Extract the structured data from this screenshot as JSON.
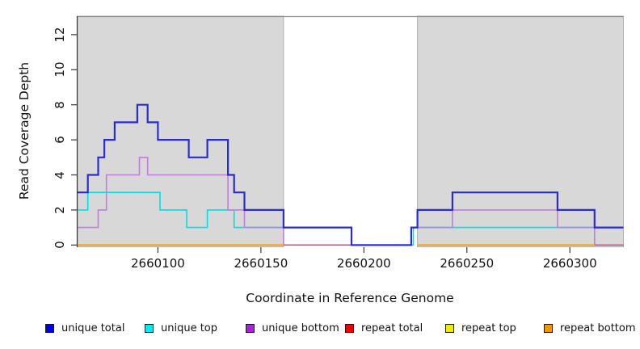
{
  "figure": {
    "xlabel": "Coordinate in Reference Genome",
    "ylabel": "Read Coverage Depth"
  },
  "chart_data": {
    "type": "line",
    "subtype": "step-coverage-plot",
    "title": "",
    "xlabel": "Coordinate in Reference Genome",
    "ylabel": "Read Coverage Depth",
    "xlim": [
      2660061,
      2660326
    ],
    "ylim": [
      0,
      13.05
    ],
    "grid": "off",
    "x_ticks": [
      {
        "coord": 2660100,
        "label": "2660100"
      },
      {
        "coord": 2660150,
        "label": "2660150"
      },
      {
        "coord": 2660200,
        "label": "2660200"
      },
      {
        "coord": 2660250,
        "label": "2660250"
      },
      {
        "coord": 2660300,
        "label": "2660300"
      }
    ],
    "y_ticks": [
      {
        "value": 0,
        "label": "0"
      },
      {
        "value": 2,
        "label": "2"
      },
      {
        "value": 4,
        "label": "4"
      },
      {
        "value": 6,
        "label": "6"
      },
      {
        "value": 8,
        "label": "8"
      },
      {
        "value": 10,
        "label": "10"
      },
      {
        "value": 12,
        "label": "12"
      }
    ],
    "shaded_regions": {
      "color": "#d8d8d8",
      "border_color": "#b0b0b0",
      "top_line_color": "#8f8f8f",
      "ranges": [
        [
          2660061,
          2660161
        ],
        [
          2660226,
          2660326
        ]
      ]
    },
    "series_draw_order": [
      {
        "name": "unique top",
        "color": "#00dfe8",
        "width": 1.6,
        "segments": [
          [
            [
              2660061,
              2
            ],
            [
              2660066,
              3
            ],
            [
              2660101,
              2
            ],
            [
              2660114,
              1
            ],
            [
              2660124,
              2
            ],
            [
              2660137,
              1
            ],
            [
              2660194,
              0
            ],
            [
              2660224,
              1
            ],
            [
              2660326,
              1
            ]
          ]
        ]
      },
      {
        "name": "unique bottom",
        "color": "#c17ce2",
        "width": 1.6,
        "segments": [
          [
            [
              2660061,
              1
            ],
            [
              2660071,
              2
            ],
            [
              2660075,
              4
            ],
            [
              2660091,
              5
            ],
            [
              2660095,
              4
            ],
            [
              2660134,
              2
            ],
            [
              2660142,
              1
            ],
            [
              2660161,
              0
            ],
            [
              2660223,
              1
            ],
            [
              2660243,
              2
            ],
            [
              2660294,
              1
            ],
            [
              2660312,
              0
            ],
            [
              2660326,
              0
            ]
          ]
        ]
      },
      {
        "name": "repeat top",
        "color": "#eded00",
        "width": 1.5,
        "segments": [
          [
            [
              2660061,
              0
            ],
            [
              2660161,
              0
            ]
          ],
          [
            [
              2660226,
              0
            ],
            [
              2660312,
              0
            ]
          ]
        ]
      },
      {
        "name": "repeat bottom",
        "color": "#ff9d00",
        "width": 1.8,
        "segments": [
          [
            [
              2660061,
              0
            ],
            [
              2660161,
              0
            ]
          ],
          [
            [
              2660226,
              0
            ],
            [
              2660312,
              0
            ]
          ]
        ]
      },
      {
        "name": "repeat total",
        "color": "#cc5577",
        "width": 1.5,
        "segments": [
          [
            [
              2660161,
              0
            ],
            [
              2660194,
              0
            ]
          ],
          [
            [
              2660312,
              0
            ],
            [
              2660326,
              0
            ]
          ]
        ]
      },
      {
        "name": "unique total",
        "color": "#2b2bd5",
        "width": 2.2,
        "segments": [
          [
            [
              2660061,
              3
            ],
            [
              2660066,
              4
            ],
            [
              2660071,
              5
            ],
            [
              2660074,
              6
            ],
            [
              2660079,
              7
            ],
            [
              2660090,
              8
            ],
            [
              2660095,
              7
            ],
            [
              2660100,
              6
            ],
            [
              2660115,
              5
            ],
            [
              2660124,
              6
            ],
            [
              2660134,
              4
            ],
            [
              2660137,
              3
            ],
            [
              2660142,
              2
            ],
            [
              2660161,
              1
            ],
            [
              2660194,
              0
            ],
            [
              2660223,
              1
            ],
            [
              2660226,
              2
            ],
            [
              2660243,
              3
            ],
            [
              2660294,
              2
            ],
            [
              2660312,
              1
            ],
            [
              2660326,
              1
            ]
          ]
        ]
      }
    ],
    "legend": {
      "position": "bottom",
      "items": [
        {
          "label": "unique total",
          "color": "#0000ee"
        },
        {
          "label": "unique top",
          "color": "#00eeee"
        },
        {
          "label": "unique bottom",
          "color": "#aa22dd"
        },
        {
          "label": "repeat total",
          "color": "#ee0000"
        },
        {
          "label": "repeat top",
          "color": "#eeee00"
        },
        {
          "label": "repeat bottom",
          "color": "#f09800"
        }
      ]
    },
    "axis_color": "#3a3a3a"
  }
}
